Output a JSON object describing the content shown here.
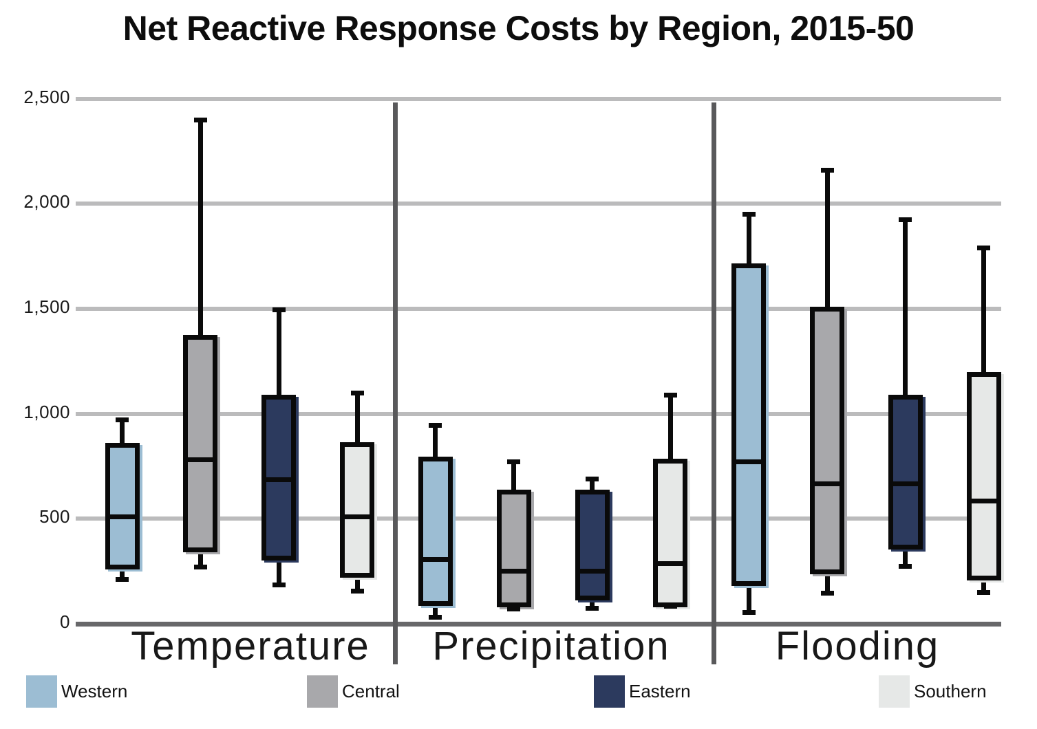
{
  "title": "Net Reactive Response Costs by Region, 2015-50",
  "y_axis": {
    "ticks": [
      {
        "value": 0,
        "label": "0"
      },
      {
        "value": 500,
        "label": "500"
      },
      {
        "value": 1000,
        "label": "1,000"
      },
      {
        "value": 1500,
        "label": "1,500"
      },
      {
        "value": 2000,
        "label": "2,000"
      },
      {
        "value": 2500,
        "label": "2,500"
      }
    ]
  },
  "legend": {
    "items": [
      "Western",
      "Central",
      "Eastern",
      "Southern"
    ]
  },
  "chart_data": {
    "type": "box",
    "title": "Net Reactive Response Costs by Region, 2015-50",
    "categories": [
      "Temperature",
      "Precipitation",
      "Flooding"
    ],
    "series": [
      {
        "name": "Western",
        "color": "#9cbdd3",
        "boxes": [
          {
            "low": 210,
            "q1": 270,
            "median": 510,
            "q3": 850,
            "high": 970
          },
          {
            "low": 30,
            "q1": 95,
            "median": 305,
            "q3": 785,
            "high": 945
          },
          {
            "low": 55,
            "q1": 190,
            "median": 770,
            "q3": 1705,
            "high": 1950
          }
        ]
      },
      {
        "name": "Central",
        "color": "#a8a8ab",
        "boxes": [
          {
            "low": 270,
            "q1": 350,
            "median": 780,
            "q3": 1365,
            "high": 2400
          },
          {
            "low": 70,
            "q1": 90,
            "median": 250,
            "q3": 630,
            "high": 770
          },
          {
            "low": 145,
            "q1": 245,
            "median": 665,
            "q3": 1500,
            "high": 2160
          }
        ]
      },
      {
        "name": "Eastern",
        "color": "#2c3a5e",
        "boxes": [
          {
            "low": 185,
            "q1": 310,
            "median": 685,
            "q3": 1080,
            "high": 1495
          },
          {
            "low": 75,
            "q1": 120,
            "median": 250,
            "q3": 630,
            "high": 690
          },
          {
            "low": 275,
            "q1": 365,
            "median": 665,
            "q3": 1080,
            "high": 1925
          }
        ]
      },
      {
        "name": "Southern",
        "color": "#e6e8e7",
        "boxes": [
          {
            "low": 155,
            "q1": 230,
            "median": 510,
            "q3": 855,
            "high": 1100
          },
          {
            "low": 85,
            "q1": 90,
            "median": 285,
            "q3": 775,
            "high": 1090
          },
          {
            "low": 150,
            "q1": 215,
            "median": 585,
            "q3": 1190,
            "high": 1790
          }
        ]
      }
    ],
    "ylim": [
      0,
      2500
    ],
    "ylabel": "",
    "xlabel": "",
    "grid": true,
    "legend_position": "bottom"
  }
}
